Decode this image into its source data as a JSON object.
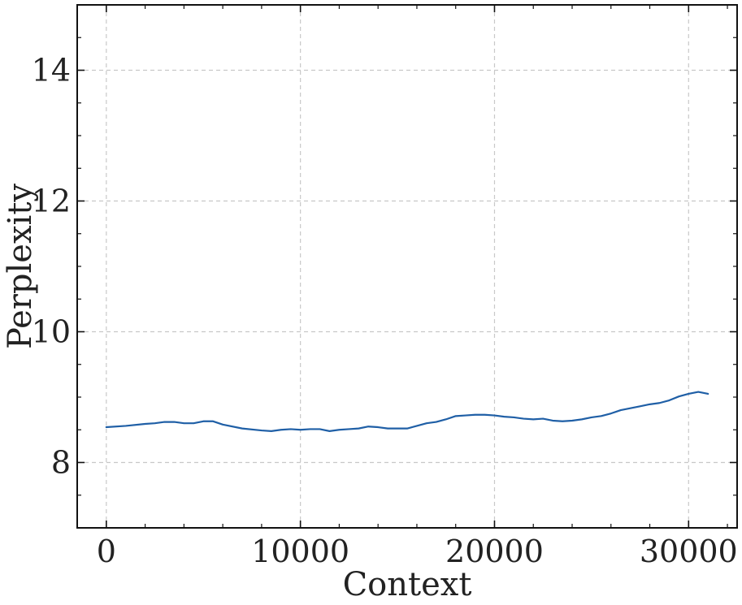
{
  "chart_data": {
    "type": "line",
    "title": "",
    "xlabel": "Context",
    "ylabel": "Perplexity",
    "xlim": [
      -1500,
      32500
    ],
    "ylim": [
      7,
      15
    ],
    "xticks": [
      0,
      10000,
      20000,
      30000
    ],
    "yticks": [
      8,
      10,
      12,
      14
    ],
    "grid": true,
    "line_color": "#1f5fa6",
    "series": [
      {
        "x": [
          0,
          1000,
          2000,
          2500,
          3000,
          3500,
          4000,
          4500,
          5000,
          5500,
          6000,
          7000,
          8000,
          8500,
          9000,
          9500,
          10000,
          10500,
          11000,
          11500,
          12000,
          12500,
          13000,
          13500,
          14000,
          14500,
          15000,
          15500,
          16000,
          16500,
          17000,
          17500,
          18000,
          18500,
          19000,
          19500,
          20000,
          20500,
          21000,
          21500,
          22000,
          22500,
          23000,
          23500,
          24000,
          24500,
          25000,
          25500,
          26000,
          26500,
          27000,
          27500,
          28000,
          28500,
          29000,
          29500,
          30000,
          30500,
          31000
        ],
        "y": [
          8.54,
          8.56,
          8.59,
          8.6,
          8.62,
          8.62,
          8.6,
          8.6,
          8.63,
          8.63,
          8.58,
          8.52,
          8.49,
          8.48,
          8.5,
          8.51,
          8.5,
          8.51,
          8.51,
          8.48,
          8.5,
          8.51,
          8.52,
          8.55,
          8.54,
          8.52,
          8.52,
          8.52,
          8.56,
          8.6,
          8.62,
          8.66,
          8.71,
          8.72,
          8.73,
          8.73,
          8.72,
          8.7,
          8.69,
          8.67,
          8.66,
          8.67,
          8.64,
          8.63,
          8.64,
          8.66,
          8.69,
          8.71,
          8.75,
          8.8,
          8.83,
          8.86,
          8.89,
          8.91,
          8.95,
          9.01,
          9.05,
          9.08,
          9.05
        ]
      }
    ]
  }
}
